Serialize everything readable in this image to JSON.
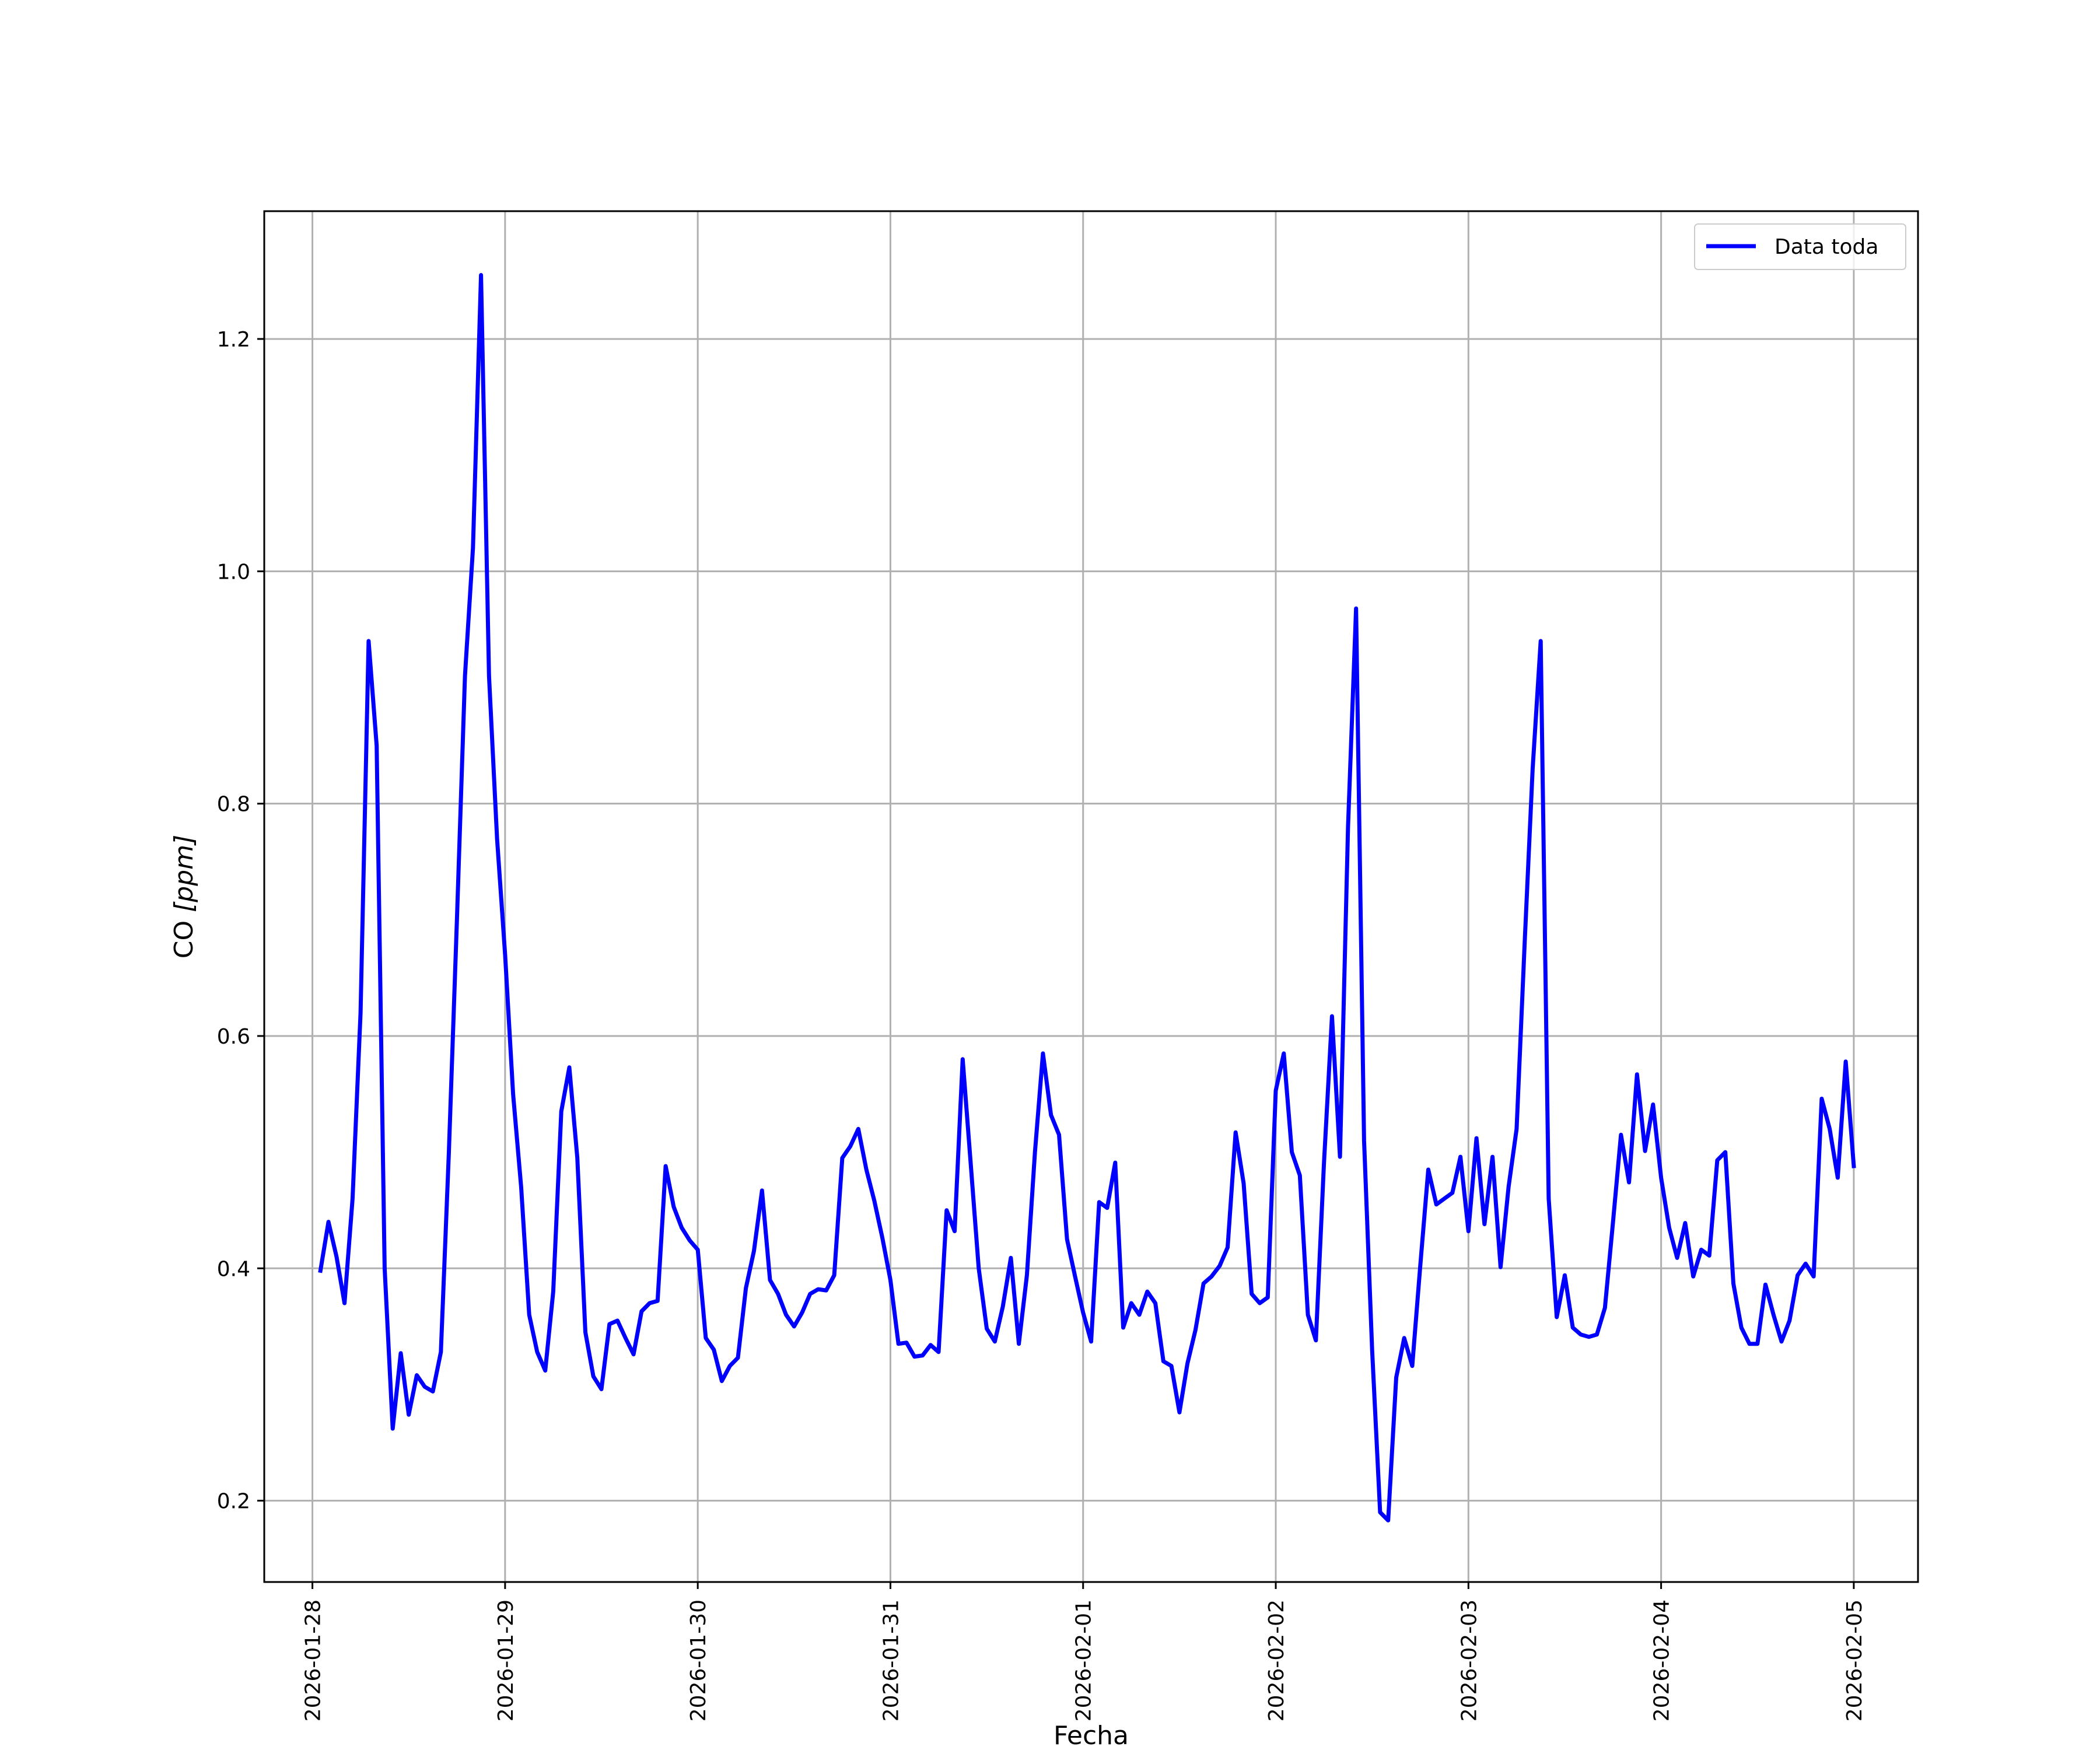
{
  "chart_data": {
    "type": "line",
    "title": "",
    "xlabel": "Fecha",
    "ylabel_text": "CO ",
    "ylabel_unit": "[ppm]",
    "xlim": [
      "2026-01-27T18:00",
      "2026-02-05T08:00"
    ],
    "ylim": [
      0.13,
      1.31
    ],
    "grid": true,
    "legend_position": "top-right",
    "x_tick_labels": [
      "2026-01-28",
      "2026-01-29",
      "2026-01-30",
      "2026-01-31",
      "2026-02-01",
      "2026-02-02",
      "2026-02-03",
      "2026-02-04",
      "2026-02-05"
    ],
    "y_tick_values": [
      0.2,
      0.4,
      0.6,
      0.8,
      1.0,
      1.2
    ],
    "y_tick_labels": [
      "0.2",
      "0.4",
      "0.6",
      "0.8",
      "1.0",
      "1.2"
    ],
    "series": [
      {
        "name": "Data toda",
        "color": "#0000ff",
        "x": [
          "2026-01-28T01:00",
          "2026-01-28T02:00",
          "2026-01-28T03:00",
          "2026-01-28T04:00",
          "2026-01-28T05:00",
          "2026-01-28T06:00",
          "2026-01-28T07:00",
          "2026-01-28T08:00",
          "2026-01-28T09:00",
          "2026-01-28T10:00",
          "2026-01-28T11:00",
          "2026-01-28T12:00",
          "2026-01-28T13:00",
          "2026-01-28T14:00",
          "2026-01-28T15:00",
          "2026-01-28T16:00",
          "2026-01-28T17:00",
          "2026-01-28T18:00",
          "2026-01-28T19:00",
          "2026-01-28T20:00",
          "2026-01-28T21:00",
          "2026-01-28T22:00",
          "2026-01-28T23:00",
          "2026-01-29T00:00",
          "2026-01-29T01:00",
          "2026-01-29T02:00",
          "2026-01-29T03:00",
          "2026-01-29T04:00",
          "2026-01-29T05:00",
          "2026-01-29T06:00",
          "2026-01-29T07:00",
          "2026-01-29T08:00",
          "2026-01-29T09:00",
          "2026-01-29T10:00",
          "2026-01-29T11:00",
          "2026-01-29T12:00",
          "2026-01-29T13:00",
          "2026-01-29T14:00",
          "2026-01-29T15:00",
          "2026-01-29T16:00",
          "2026-01-29T17:00",
          "2026-01-29T18:00",
          "2026-01-29T19:00",
          "2026-01-29T20:00",
          "2026-01-29T21:00",
          "2026-01-29T22:00",
          "2026-01-29T23:00",
          "2026-01-30T00:00",
          "2026-01-30T01:00",
          "2026-01-30T02:00",
          "2026-01-30T03:00",
          "2026-01-30T04:00",
          "2026-01-30T05:00",
          "2026-01-30T06:00",
          "2026-01-30T07:00",
          "2026-01-30T08:00",
          "2026-01-30T09:00",
          "2026-01-30T10:00",
          "2026-01-30T11:00",
          "2026-01-30T12:00",
          "2026-01-30T13:00",
          "2026-01-30T14:00",
          "2026-01-30T15:00",
          "2026-01-30T16:00",
          "2026-01-30T17:00",
          "2026-01-30T18:00",
          "2026-01-30T19:00",
          "2026-01-30T20:00",
          "2026-01-30T21:00",
          "2026-01-30T22:00",
          "2026-01-30T23:00",
          "2026-01-31T00:00",
          "2026-01-31T01:00",
          "2026-01-31T02:00",
          "2026-01-31T03:00",
          "2026-01-31T04:00",
          "2026-01-31T05:00",
          "2026-01-31T06:00",
          "2026-01-31T07:00",
          "2026-01-31T08:00",
          "2026-01-31T09:00",
          "2026-01-31T10:00",
          "2026-01-31T11:00",
          "2026-01-31T12:00",
          "2026-01-31T13:00",
          "2026-01-31T14:00",
          "2026-01-31T15:00",
          "2026-01-31T16:00",
          "2026-01-31T17:00",
          "2026-01-31T18:00",
          "2026-01-31T19:00",
          "2026-01-31T20:00",
          "2026-01-31T21:00",
          "2026-01-31T22:00",
          "2026-01-31T23:00",
          "2026-02-01T00:00",
          "2026-02-01T01:00",
          "2026-02-01T02:00",
          "2026-02-01T03:00",
          "2026-02-01T04:00",
          "2026-02-01T05:00",
          "2026-02-01T06:00",
          "2026-02-01T07:00",
          "2026-02-01T08:00",
          "2026-02-01T09:00",
          "2026-02-01T10:00",
          "2026-02-01T11:00",
          "2026-02-01T12:00",
          "2026-02-01T13:00",
          "2026-02-01T14:00",
          "2026-02-01T15:00",
          "2026-02-01T16:00",
          "2026-02-01T17:00",
          "2026-02-01T18:00",
          "2026-02-01T19:00",
          "2026-02-01T20:00",
          "2026-02-01T21:00",
          "2026-02-01T22:00",
          "2026-02-01T23:00",
          "2026-02-02T00:00",
          "2026-02-02T01:00",
          "2026-02-02T02:00",
          "2026-02-02T03:00",
          "2026-02-02T04:00",
          "2026-02-02T05:00",
          "2026-02-02T06:00",
          "2026-02-02T07:00",
          "2026-02-02T08:00",
          "2026-02-02T09:00",
          "2026-02-02T10:00",
          "2026-02-02T11:00",
          "2026-02-02T12:00",
          "2026-02-02T13:00",
          "2026-02-02T14:00",
          "2026-02-02T15:00",
          "2026-02-02T16:00",
          "2026-02-02T17:00",
          "2026-02-02T18:00",
          "2026-02-02T19:00",
          "2026-02-02T20:00",
          "2026-02-02T21:00",
          "2026-02-02T22:00",
          "2026-02-02T23:00",
          "2026-02-03T00:00",
          "2026-02-03T01:00",
          "2026-02-03T02:00",
          "2026-02-03T03:00",
          "2026-02-03T04:00",
          "2026-02-03T05:00",
          "2026-02-03T06:00",
          "2026-02-03T07:00",
          "2026-02-03T08:00",
          "2026-02-03T09:00",
          "2026-02-03T10:00",
          "2026-02-03T11:00",
          "2026-02-03T12:00",
          "2026-02-03T13:00",
          "2026-02-03T14:00",
          "2026-02-03T15:00",
          "2026-02-03T16:00",
          "2026-02-03T17:00",
          "2026-02-03T18:00",
          "2026-02-03T19:00",
          "2026-02-03T20:00",
          "2026-02-03T21:00",
          "2026-02-03T22:00",
          "2026-02-03T23:00",
          "2026-02-04T00:00",
          "2026-02-04T01:00",
          "2026-02-04T02:00",
          "2026-02-04T03:00",
          "2026-02-04T04:00",
          "2026-02-04T05:00",
          "2026-02-04T06:00",
          "2026-02-04T07:00",
          "2026-02-04T08:00",
          "2026-02-04T09:00",
          "2026-02-04T10:00",
          "2026-02-04T11:00",
          "2026-02-04T12:00",
          "2026-02-04T13:00",
          "2026-02-04T14:00",
          "2026-02-04T15:00",
          "2026-02-04T16:00",
          "2026-02-04T17:00",
          "2026-02-04T18:00",
          "2026-02-04T19:00",
          "2026-02-04T20:00",
          "2026-02-04T21:00",
          "2026-02-04T22:00",
          "2026-02-04T23:00",
          "2026-02-05T00:00"
        ],
        "values": [
          0.398,
          0.44,
          0.41,
          0.37,
          0.46,
          0.62,
          0.94,
          0.85,
          0.4,
          0.262,
          0.327,
          0.274,
          0.308,
          0.298,
          0.294,
          0.328,
          0.5,
          0.7,
          0.91,
          1.02,
          1.255,
          0.91,
          0.77,
          0.67,
          0.55,
          0.47,
          0.36,
          0.328,
          0.312,
          0.38,
          0.535,
          0.573,
          0.495,
          0.345,
          0.307,
          0.296,
          0.352,
          0.355,
          0.34,
          0.326,
          0.363,
          0.37,
          0.372,
          0.488,
          0.453,
          0.435,
          0.424,
          0.416,
          0.34,
          0.33,
          0.303,
          0.316,
          0.323,
          0.383,
          0.415,
          0.467,
          0.39,
          0.378,
          0.36,
          0.35,
          0.362,
          0.378,
          0.382,
          0.381,
          0.394,
          0.495,
          0.505,
          0.52,
          0.485,
          0.458,
          0.426,
          0.39,
          0.335,
          0.336,
          0.324,
          0.325,
          0.334,
          0.328,
          0.45,
          0.432,
          0.58,
          0.49,
          0.4,
          0.348,
          0.337,
          0.367,
          0.409,
          0.335,
          0.394,
          0.5,
          0.585,
          0.532,
          0.515,
          0.425,
          0.393,
          0.362,
          0.337,
          0.457,
          0.452,
          0.491,
          0.349,
          0.37,
          0.36,
          0.38,
          0.37,
          0.32,
          0.316,
          0.276,
          0.318,
          0.347,
          0.387,
          0.393,
          0.402,
          0.418,
          0.517,
          0.473,
          0.378,
          0.37,
          0.375,
          0.553,
          0.585,
          0.5,
          0.48,
          0.36,
          0.338,
          0.49,
          0.617,
          0.496,
          0.78,
          0.968,
          0.51,
          0.33,
          0.19,
          0.183,
          0.306,
          0.34,
          0.316,
          0.402,
          0.485,
          0.455,
          0.46,
          0.465,
          0.496,
          0.432,
          0.512,
          0.438,
          0.496,
          0.401,
          0.47,
          0.52,
          0.68,
          0.83,
          0.94,
          0.46,
          0.358,
          0.394,
          0.349,
          0.343,
          0.341,
          0.343,
          0.366,
          0.439,
          0.515,
          0.474,
          0.567,
          0.501,
          0.541,
          0.478,
          0.435,
          0.409,
          0.439,
          0.393,
          0.416,
          0.411,
          0.493,
          0.5,
          0.387,
          0.349,
          0.335,
          0.335,
          0.386,
          0.36,
          0.337,
          0.355,
          0.394,
          0.404,
          0.393,
          0.546,
          0.52,
          0.478,
          0.578,
          0.488
        ]
      }
    ]
  }
}
